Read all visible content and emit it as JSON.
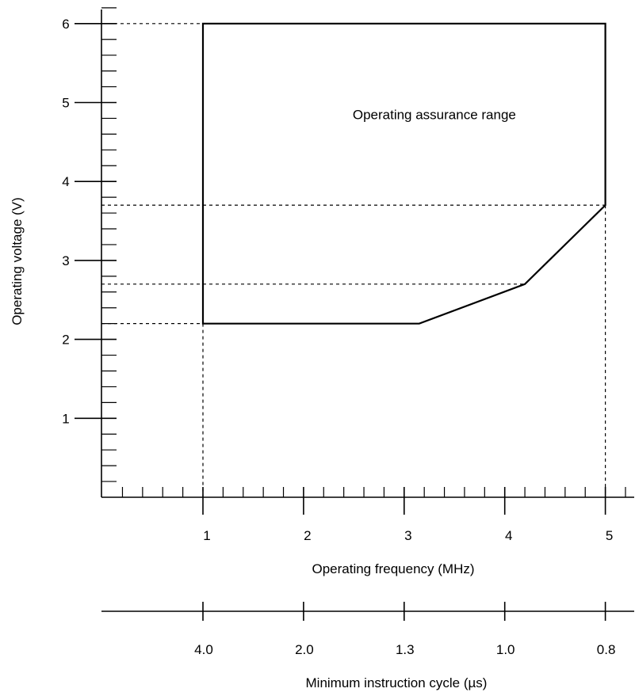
{
  "chart_data": {
    "type": "area",
    "title": "",
    "xlabel": "Operating frequency (MHz)",
    "ylabel": "Operating voltage (V)",
    "secondary_xlabel": "Minimum instruction cycle (µs)",
    "xlim": [
      0,
      5.4
    ],
    "ylim": [
      0,
      6.5
    ],
    "grid": false,
    "legend": "none",
    "x_ticks": [
      1,
      2,
      3,
      4,
      5
    ],
    "x_tick_labels": [
      "1",
      "2",
      "3",
      "4",
      "5"
    ],
    "y_ticks": [
      1,
      2,
      3,
      4,
      5,
      6
    ],
    "y_tick_labels": [
      "1",
      "2",
      "3",
      "4",
      "5",
      "6"
    ],
    "secondary_x_ticks": [
      1,
      2,
      3,
      4,
      5
    ],
    "secondary_x_tick_labels": [
      "4.0",
      "2.0",
      "1.3",
      "1.0",
      "0.8"
    ],
    "region": {
      "label": "Operating assurance range",
      "label_position": [
        3.3,
        4.85
      ],
      "boundary": [
        {
          "x": 1.0,
          "y": 6.0
        },
        {
          "x": 5.0,
          "y": 6.0
        },
        {
          "x": 5.0,
          "y": 3.7
        },
        {
          "x": 4.2,
          "y": 2.7
        },
        {
          "x": 3.15,
          "y": 2.2
        },
        {
          "x": 1.0,
          "y": 2.2
        }
      ]
    },
    "reference_lines": {
      "horizontal": [
        6.0,
        3.7,
        2.7,
        2.2
      ],
      "vertical": [
        1.0,
        5.0
      ]
    }
  },
  "colors": {
    "stroke": "#000000",
    "background": "#ffffff"
  }
}
